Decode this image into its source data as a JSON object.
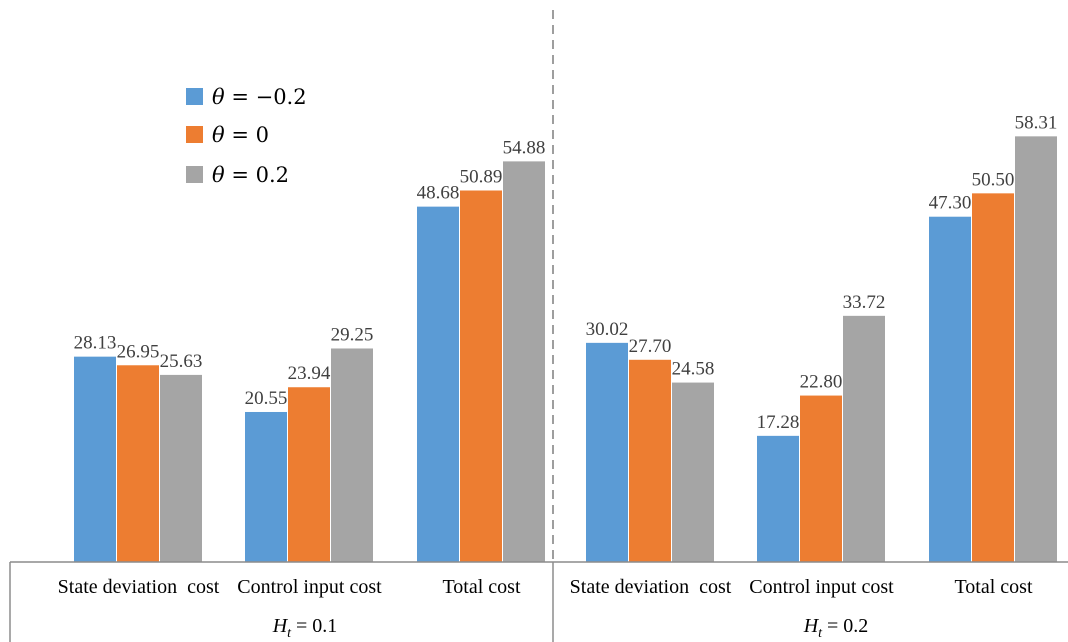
{
  "chart_data": {
    "type": "bar",
    "ylim": [
      0,
      64
    ],
    "grid": false,
    "legend_position": "top-left",
    "groups": [
      {
        "label": "H_t = 0.1",
        "categories": [
          "State deviation  cost",
          "Control input cost",
          "Total cost"
        ],
        "series": [
          {
            "name": "θ = −0.2",
            "values": [
              28.13,
              20.55,
              48.68
            ]
          },
          {
            "name": "θ = 0",
            "values": [
              26.95,
              23.94,
              50.89
            ]
          },
          {
            "name": "θ = 0.2",
            "values": [
              25.63,
              29.25,
              54.88
            ]
          }
        ]
      },
      {
        "label": "H_t = 0.2",
        "categories": [
          "State deviation  cost",
          "Control input cost",
          "Total cost"
        ],
        "series": [
          {
            "name": "θ = −0.2",
            "values": [
              30.02,
              17.28,
              47.3
            ]
          },
          {
            "name": "θ = 0",
            "values": [
              27.7,
              22.8,
              50.5
            ]
          },
          {
            "name": "θ = 0.2",
            "values": [
              24.58,
              33.72,
              58.31
            ]
          }
        ]
      }
    ],
    "colors": [
      "#5B9BD5",
      "#ED7D31",
      "#A5A5A5"
    ],
    "value_labels": [
      [
        "28.13",
        "26.95",
        "25.63",
        "20.55",
        "23.94",
        "29.25",
        "48.68",
        "50.89",
        "54.88"
      ],
      [
        "30.02",
        "27.70",
        "24.58",
        "17.28",
        "22.80",
        "33.72",
        "47.30",
        "50.50",
        "58.31"
      ]
    ]
  }
}
